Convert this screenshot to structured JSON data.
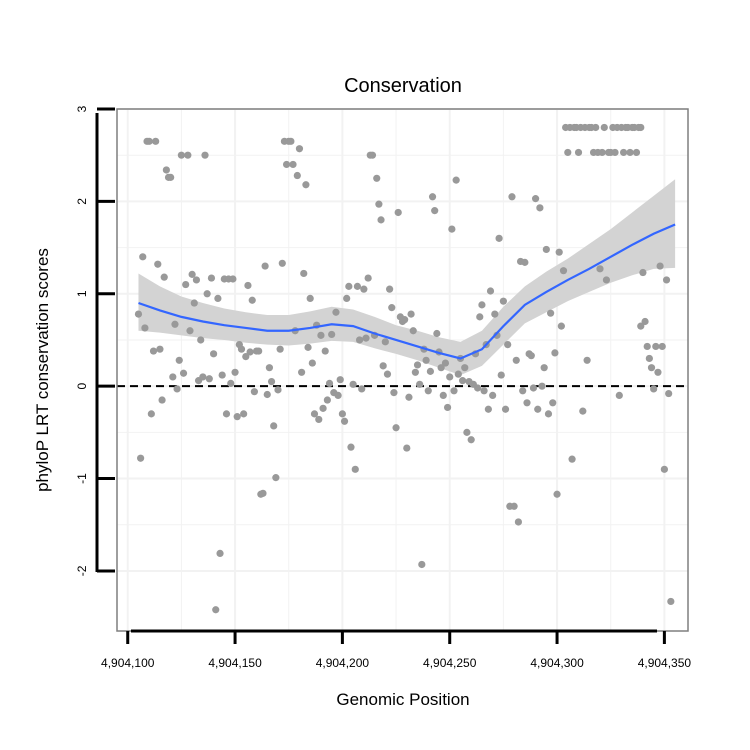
{
  "chart_data": {
    "type": "scatter",
    "title": "Conservation",
    "xlabel": "Genomic Position",
    "ylabel": "phyloP LRT conservation scores",
    "xlim": [
      4904095,
      4904361
    ],
    "ylim": [
      -2.65,
      3.0
    ],
    "x_ticks": [
      4904100,
      4904150,
      4904200,
      4904250,
      4904300,
      4904350
    ],
    "x_tick_labels": [
      "4,904,100",
      "4,904,150",
      "4,904,200",
      "4,904,250",
      "4,904,300",
      "4,904,350"
    ],
    "y_ticks": [
      -2,
      -1,
      0,
      1,
      2,
      3
    ],
    "y_tick_labels": [
      "-2",
      "-1",
      "0",
      "1",
      "2",
      "3"
    ],
    "reference_line": {
      "y": 0,
      "style": "dashed"
    },
    "grid": true,
    "colors": {
      "points": "#999999",
      "smooth_line": "#3366ff",
      "band": "#d3d3d3",
      "reference_line": "#000000",
      "grid": "#f2f2f2",
      "panel_border": "#7f7f7f"
    },
    "points": [
      [
        4904105,
        0.78
      ],
      [
        4904106,
        -0.78
      ],
      [
        4904107,
        1.4
      ],
      [
        4904108,
        0.63
      ],
      [
        4904109,
        2.65
      ],
      [
        4904110,
        2.65
      ],
      [
        4904111,
        -0.3
      ],
      [
        4904112,
        0.38
      ],
      [
        4904113,
        2.65
      ],
      [
        4904114,
        1.32
      ],
      [
        4904115,
        0.4
      ],
      [
        4904116,
        -0.15
      ],
      [
        4904117,
        1.18
      ],
      [
        4904118,
        2.34
      ],
      [
        4904119,
        2.26
      ],
      [
        4904120,
        2.26
      ],
      [
        4904121,
        0.1
      ],
      [
        4904122,
        0.67
      ],
      [
        4904123,
        -0.03
      ],
      [
        4904124,
        0.28
      ],
      [
        4904125,
        2.5
      ],
      [
        4904126,
        0.14
      ],
      [
        4904127,
        1.1
      ],
      [
        4904128,
        2.5
      ],
      [
        4904129,
        0.6
      ],
      [
        4904130,
        1.21
      ],
      [
        4904131,
        0.9
      ],
      [
        4904132,
        1.15
      ],
      [
        4904133,
        0.06
      ],
      [
        4904134,
        0.5
      ],
      [
        4904135,
        0.1
      ],
      [
        4904136,
        2.5
      ],
      [
        4904137,
        1.0
      ],
      [
        4904138,
        0.08
      ],
      [
        4904139,
        1.17
      ],
      [
        4904140,
        0.35
      ],
      [
        4904141,
        -2.42
      ],
      [
        4904142,
        0.95
      ],
      [
        4904143,
        -1.81
      ],
      [
        4904144,
        0.12
      ],
      [
        4904145,
        1.16
      ],
      [
        4904146,
        -0.3
      ],
      [
        4904147,
        1.16
      ],
      [
        4904148,
        0.03
      ],
      [
        4904149,
        1.16
      ],
      [
        4904150,
        0.15
      ],
      [
        4904151,
        -0.33
      ],
      [
        4904152,
        0.45
      ],
      [
        4904153,
        0.4
      ],
      [
        4904154,
        -0.3
      ],
      [
        4904155,
        0.32
      ],
      [
        4904156,
        1.09
      ],
      [
        4904157,
        0.37
      ],
      [
        4904158,
        0.93
      ],
      [
        4904159,
        -0.06
      ],
      [
        4904160,
        0.38
      ],
      [
        4904161,
        0.38
      ],
      [
        4904162,
        -1.17
      ],
      [
        4904163,
        -1.16
      ],
      [
        4904164,
        1.3
      ],
      [
        4904165,
        -0.09
      ],
      [
        4904166,
        0.2
      ],
      [
        4904167,
        0.05
      ],
      [
        4904168,
        -0.43
      ],
      [
        4904169,
        -0.99
      ],
      [
        4904170,
        -0.04
      ],
      [
        4904171,
        0.4
      ],
      [
        4904172,
        1.33
      ],
      [
        4904173,
        2.65
      ],
      [
        4904174,
        2.4
      ],
      [
        4904175,
        2.65
      ],
      [
        4904176,
        2.65
      ],
      [
        4904177,
        2.4
      ],
      [
        4904178,
        0.6
      ],
      [
        4904179,
        2.28
      ],
      [
        4904180,
        2.57
      ],
      [
        4904181,
        0.15
      ],
      [
        4904182,
        1.22
      ],
      [
        4904183,
        2.18
      ],
      [
        4904184,
        0.42
      ],
      [
        4904185,
        0.95
      ],
      [
        4904186,
        0.25
      ],
      [
        4904187,
        -0.3
      ],
      [
        4904188,
        0.66
      ],
      [
        4904189,
        -0.36
      ],
      [
        4904190,
        0.55
      ],
      [
        4904191,
        -0.24
      ],
      [
        4904192,
        0.38
      ],
      [
        4904193,
        -0.15
      ],
      [
        4904194,
        0.03
      ],
      [
        4904195,
        0.56
      ],
      [
        4904196,
        -0.07
      ],
      [
        4904197,
        0.8
      ],
      [
        4904198,
        -0.1
      ],
      [
        4904199,
        0.07
      ],
      [
        4904200,
        -0.3
      ],
      [
        4904201,
        -0.38
      ],
      [
        4904202,
        0.95
      ],
      [
        4904203,
        1.08
      ],
      [
        4904204,
        -0.66
      ],
      [
        4904205,
        0.02
      ],
      [
        4904206,
        -0.9
      ],
      [
        4904207,
        1.08
      ],
      [
        4904208,
        0.5
      ],
      [
        4904209,
        -0.03
      ],
      [
        4904210,
        1.05
      ],
      [
        4904211,
        0.52
      ],
      [
        4904212,
        1.17
      ],
      [
        4904213,
        2.5
      ],
      [
        4904214,
        2.5
      ],
      [
        4904215,
        0.55
      ],
      [
        4904216,
        2.25
      ],
      [
        4904217,
        1.97
      ],
      [
        4904218,
        1.8
      ],
      [
        4904219,
        0.22
      ],
      [
        4904220,
        0.48
      ],
      [
        4904221,
        0.13
      ],
      [
        4904222,
        1.05
      ],
      [
        4904223,
        0.85
      ],
      [
        4904224,
        -0.07
      ],
      [
        4904225,
        -0.45
      ],
      [
        4904226,
        1.88
      ],
      [
        4904227,
        0.75
      ],
      [
        4904228,
        0.7
      ],
      [
        4904229,
        0.72
      ],
      [
        4904230,
        -0.67
      ],
      [
        4904231,
        -0.12
      ],
      [
        4904232,
        0.78
      ],
      [
        4904233,
        0.6
      ],
      [
        4904234,
        0.15
      ],
      [
        4904235,
        0.23
      ],
      [
        4904236,
        0.02
      ],
      [
        4904237,
        -1.93
      ],
      [
        4904238,
        0.4
      ],
      [
        4904239,
        0.28
      ],
      [
        4904240,
        -0.05
      ],
      [
        4904241,
        0.16
      ],
      [
        4904242,
        2.05
      ],
      [
        4904243,
        1.9
      ],
      [
        4904244,
        0.57
      ],
      [
        4904245,
        0.37
      ],
      [
        4904246,
        0.2
      ],
      [
        4904247,
        -0.1
      ],
      [
        4904248,
        0.25
      ],
      [
        4904249,
        -0.23
      ],
      [
        4904250,
        0.1
      ],
      [
        4904251,
        1.7
      ],
      [
        4904252,
        -0.05
      ],
      [
        4904253,
        2.23
      ],
      [
        4904254,
        0.13
      ],
      [
        4904255,
        0.3
      ],
      [
        4904256,
        0.06
      ],
      [
        4904257,
        0.2
      ],
      [
        4904258,
        -0.5
      ],
      [
        4904259,
        0.05
      ],
      [
        4904260,
        -0.58
      ],
      [
        4904261,
        0.02
      ],
      [
        4904262,
        0.35
      ],
      [
        4904263,
        -0.02
      ],
      [
        4904264,
        0.75
      ],
      [
        4904265,
        0.88
      ],
      [
        4904266,
        -0.05
      ],
      [
        4904267,
        0.45
      ],
      [
        4904268,
        -0.25
      ],
      [
        4904269,
        1.03
      ],
      [
        4904270,
        -0.1
      ],
      [
        4904271,
        0.78
      ],
      [
        4904272,
        0.55
      ],
      [
        4904273,
        1.6
      ],
      [
        4904274,
        0.12
      ],
      [
        4904275,
        0.92
      ],
      [
        4904276,
        -0.25
      ],
      [
        4904277,
        0.45
      ],
      [
        4904278,
        -1.3
      ],
      [
        4904279,
        2.05
      ],
      [
        4904280,
        -1.3
      ],
      [
        4904281,
        0.28
      ],
      [
        4904282,
        -1.47
      ],
      [
        4904283,
        1.35
      ],
      [
        4904284,
        -0.05
      ],
      [
        4904285,
        1.34
      ],
      [
        4904286,
        -0.18
      ],
      [
        4904287,
        0.35
      ],
      [
        4904288,
        0.33
      ],
      [
        4904289,
        -0.02
      ],
      [
        4904290,
        2.03
      ],
      [
        4904291,
        -0.25
      ],
      [
        4904292,
        1.93
      ],
      [
        4904293,
        0.0
      ],
      [
        4904294,
        0.2
      ],
      [
        4904295,
        1.48
      ],
      [
        4904296,
        -0.3
      ],
      [
        4904297,
        0.79
      ],
      [
        4904298,
        -0.18
      ],
      [
        4904299,
        0.36
      ],
      [
        4904300,
        -1.17
      ],
      [
        4904301,
        1.45
      ],
      [
        4904302,
        0.65
      ],
      [
        4904303,
        1.25
      ],
      [
        4904304,
        2.8
      ],
      [
        4904305,
        2.53
      ],
      [
        4904306,
        2.8
      ],
      [
        4904307,
        -0.79
      ],
      [
        4904308,
        2.8
      ],
      [
        4904309,
        2.8
      ],
      [
        4904310,
        2.53
      ],
      [
        4904311,
        2.8
      ],
      [
        4904312,
        -0.27
      ],
      [
        4904313,
        2.8
      ],
      [
        4904314,
        0.28
      ],
      [
        4904315,
        2.8
      ],
      [
        4904316,
        2.8
      ],
      [
        4904317,
        2.53
      ],
      [
        4904318,
        2.8
      ],
      [
        4904319,
        2.53
      ],
      [
        4904320,
        1.27
      ],
      [
        4904321,
        2.53
      ],
      [
        4904322,
        2.8
      ],
      [
        4904323,
        1.15
      ],
      [
        4904324,
        2.53
      ],
      [
        4904325,
        2.53
      ],
      [
        4904326,
        2.8
      ],
      [
        4904327,
        2.53
      ],
      [
        4904328,
        2.8
      ],
      [
        4904329,
        -0.1
      ],
      [
        4904330,
        2.8
      ],
      [
        4904331,
        2.53
      ],
      [
        4904332,
        2.8
      ],
      [
        4904333,
        2.8
      ],
      [
        4904334,
        2.53
      ],
      [
        4904335,
        2.8
      ],
      [
        4904336,
        2.8
      ],
      [
        4904337,
        2.53
      ],
      [
        4904338,
        2.8
      ],
      [
        4904339,
        2.8
      ],
      [
        4904340,
        1.23
      ],
      [
        4904341,
        0.7
      ],
      [
        4904342,
        0.43
      ],
      [
        4904343,
        0.3
      ],
      [
        4904344,
        0.2
      ],
      [
        4904345,
        -0.03
      ],
      [
        4904346,
        0.43
      ],
      [
        4904347,
        0.15
      ],
      [
        4904348,
        1.3
      ],
      [
        4904349,
        0.43
      ],
      [
        4904350,
        -0.9
      ],
      [
        4904351,
        1.15
      ],
      [
        4904352,
        -0.08
      ],
      [
        4904353,
        -2.33
      ],
      [
        4904339,
        0.65
      ]
    ],
    "smooth": {
      "x": [
        4904105,
        4904115,
        4904125,
        4904135,
        4904145,
        4904155,
        4904165,
        4904175,
        4904185,
        4904195,
        4904205,
        4904215,
        4904225,
        4904235,
        4904245,
        4904255,
        4904265,
        4904275,
        4904285,
        4904295,
        4904305,
        4904315,
        4904325,
        4904335,
        4904345,
        4904355
      ],
      "y": [
        0.9,
        0.82,
        0.75,
        0.7,
        0.66,
        0.63,
        0.6,
        0.6,
        0.63,
        0.67,
        0.65,
        0.57,
        0.5,
        0.43,
        0.36,
        0.3,
        0.4,
        0.65,
        0.88,
        1.02,
        1.15,
        1.27,
        1.4,
        1.53,
        1.65,
        1.75
      ],
      "lower": [
        0.6,
        0.58,
        0.55,
        0.52,
        0.5,
        0.47,
        0.45,
        0.44,
        0.46,
        0.49,
        0.48,
        0.41,
        0.35,
        0.28,
        0.2,
        0.12,
        0.22,
        0.45,
        0.68,
        0.8,
        0.92,
        1.02,
        1.12,
        1.2,
        1.27,
        1.28
      ],
      "upper": [
        1.22,
        1.08,
        0.97,
        0.9,
        0.84,
        0.8,
        0.77,
        0.77,
        0.81,
        0.86,
        0.83,
        0.75,
        0.66,
        0.6,
        0.53,
        0.48,
        0.6,
        0.86,
        1.08,
        1.24,
        1.38,
        1.54,
        1.7,
        1.88,
        2.06,
        2.24
      ]
    }
  }
}
